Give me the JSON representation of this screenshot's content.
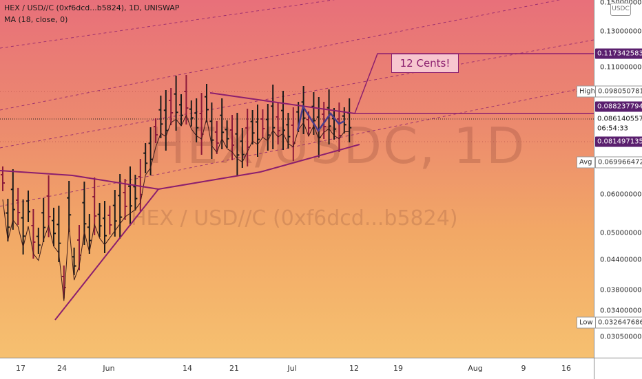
{
  "legend": {
    "symbol_line": "HEX / USD//C (0xf6dcd...b5824), 1D, UNISWAP",
    "indicator_line": "MA (18, close, 0)"
  },
  "watermark": {
    "big": "HEX/USDC, 1D",
    "small": "HEX / USD//C (0xf6dcd...b5824)"
  },
  "callout_text": "12 Cents!",
  "currency_button": "USDC",
  "price_scale": {
    "ticks": [
      "0.1500000000",
      "0.1300000000",
      "0.1100000000",
      "0.0600000000",
      "0.0500000000",
      "0.0440000000",
      "0.0380000000",
      "0.0340000000",
      "0.0305000000"
    ],
    "tags": [
      {
        "label": "",
        "value": "0.1173425837",
        "style": "dark"
      },
      {
        "label": "High",
        "value": "0.0980507817",
        "style": "light"
      },
      {
        "label": "",
        "value": "0.0882377945",
        "style": "dark"
      },
      {
        "label": "",
        "value": "0.0861405571",
        "style": "white"
      },
      {
        "label": "",
        "value": "06:54:33",
        "style": "white"
      },
      {
        "label": "",
        "value": "0.0814971354",
        "style": "dark"
      },
      {
        "label": "Avg",
        "value": "0.0699664720",
        "style": "light"
      },
      {
        "label": "Low",
        "value": "0.0326476861",
        "style": "light"
      }
    ]
  },
  "time_scale": [
    "17",
    "24",
    "Jun",
    "14",
    "21",
    "Jul",
    "12",
    "19",
    "Aug",
    "9",
    "16"
  ],
  "colors": {
    "bar": "#1a1a1a",
    "bar_down": "#8b1a3a",
    "trendline": "#8b1e6e",
    "pattern": "#4a3d8a",
    "ma": "#3a1a1a"
  },
  "chart_data": {
    "type": "ohlc",
    "interval": "1D",
    "price_scale": "log",
    "last": 0.0861405571,
    "high": 0.0980507817,
    "low": 0.0326476861,
    "avg": 0.069966472,
    "target": 0.1173425837,
    "resistance": 0.0882377945,
    "support": 0.0814971354
  }
}
